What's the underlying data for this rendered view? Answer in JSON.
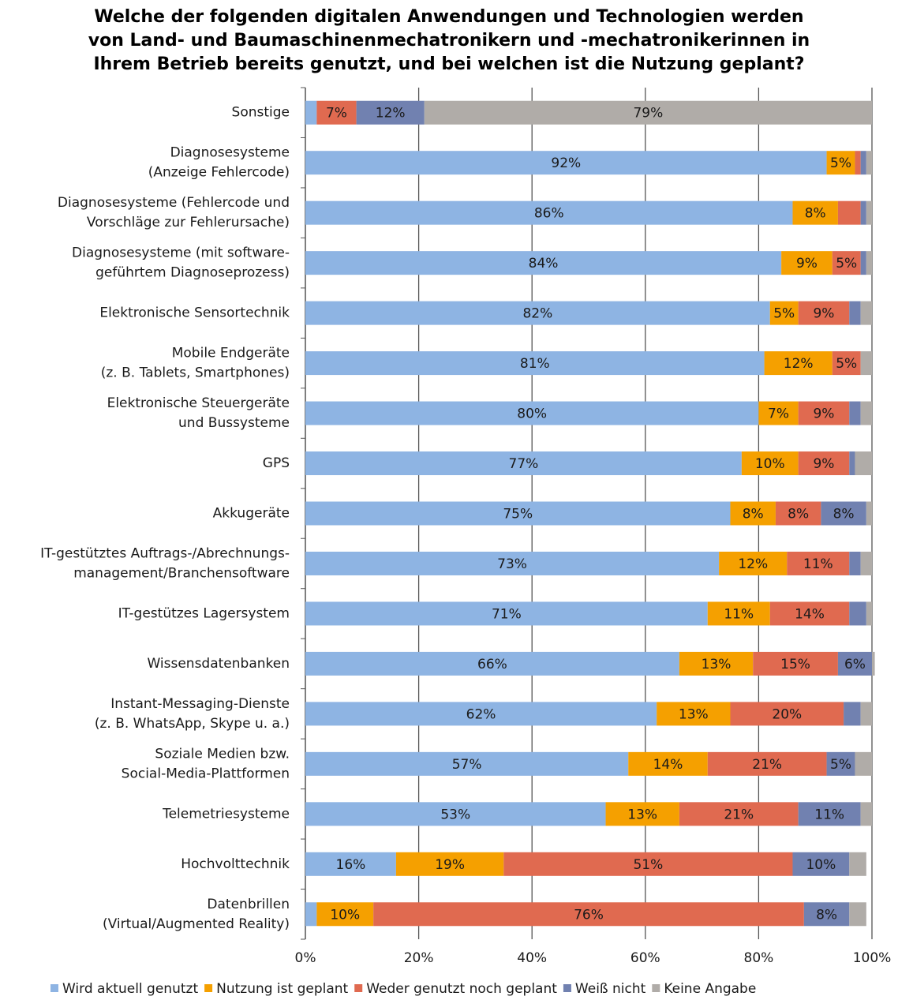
{
  "chart_data": {
    "type": "stacked-bar-horizontal",
    "title": [
      "Welche der folgenden digitalen Anwendungen und Technologien werden",
      "von Land- und Baumaschinenmechatronikern und -mechatronikerinnen  in",
      "Ihrem Betrieb bereits genutzt, und bei welchen ist die Nutzung geplant?"
    ],
    "categories": [
      [
        "Sonstige"
      ],
      [
        "Diagnosesysteme",
        "(Anzeige Fehlercode)"
      ],
      [
        "Diagnosesysteme (Fehlercode und",
        "Vorschläge zur Fehlerursache)"
      ],
      [
        "Diagnosesysteme (mit software-",
        "geführtem Diagnoseprozess)"
      ],
      [
        "Elektronische Sensortechnik"
      ],
      [
        "Mobile Endgeräte",
        "(z. B. Tablets, Smartphones)"
      ],
      [
        "Elektronische Steuergeräte",
        "und Bussysteme"
      ],
      [
        "GPS"
      ],
      [
        "Akkugeräte"
      ],
      [
        "IT-gestütztes Auftrags-/Abrechnungs-",
        "management/Branchensoftware"
      ],
      [
        "IT-gestützes Lagersystem"
      ],
      [
        "Wissensdatenbanken"
      ],
      [
        "Instant-Messaging-Dienste",
        "(z. B. WhatsApp, Skype u. a.)"
      ],
      [
        "Soziale Medien bzw.",
        "Social-Media-Plattformen"
      ],
      [
        "Telemetriesysteme"
      ],
      [
        "Hochvolttechnik"
      ],
      [
        "Datenbrillen",
        "(Virtual/Augmented Reality)"
      ]
    ],
    "series": [
      {
        "name": "Wird aktuell genutzt",
        "color": "#8eb4e3",
        "values": [
          2,
          92,
          86,
          84,
          82,
          81,
          80,
          77,
          75,
          73,
          71,
          66,
          62,
          57,
          53,
          16,
          2
        ],
        "value_labels": [
          null,
          "92%",
          "86%",
          "84%",
          "82%",
          "81%",
          "80%",
          "77%",
          "75%",
          "73%",
          "71%",
          "66%",
          "62%",
          "57%",
          "53%",
          "16%",
          null
        ]
      },
      {
        "name": "Nutzung ist geplant",
        "color": "#f5a000",
        "values": [
          0,
          5,
          8,
          9,
          5,
          12,
          7,
          10,
          8,
          12,
          11,
          13,
          13,
          14,
          13,
          19,
          10
        ],
        "value_labels": [
          null,
          "5%",
          "8%",
          "9%",
          "5%",
          "12%",
          "7%",
          "10%",
          "8%",
          "12%",
          "11%",
          "13%",
          "13%",
          "14%",
          "13%",
          "19%",
          "10%"
        ]
      },
      {
        "name": "Weder genutzt noch geplant",
        "color": "#e06a50",
        "values": [
          7,
          1,
          4,
          5,
          9,
          5,
          9,
          9,
          8,
          11,
          14,
          15,
          20,
          21,
          21,
          51,
          76
        ],
        "value_labels": [
          "7%",
          null,
          null,
          "5%",
          "9%",
          "5%",
          "9%",
          "9%",
          "8%",
          "11%",
          "14%",
          "15%",
          "20%",
          "21%",
          "21%",
          "51%",
          "76%"
        ]
      },
      {
        "name": "Weiß nicht",
        "color": "#7181b0",
        "values": [
          12,
          1,
          1,
          1,
          2,
          0,
          2,
          1,
          8,
          2,
          3,
          6,
          3,
          5,
          11,
          10,
          8
        ],
        "value_labels": [
          "12%",
          null,
          null,
          null,
          null,
          null,
          null,
          null,
          "8%",
          null,
          null,
          "6%",
          null,
          "5%",
          "11%",
          "10%",
          "8%"
        ]
      },
      {
        "name": "Keine Angabe",
        "color": "#b0aca8",
        "values": [
          79,
          1,
          1,
          1,
          2,
          2,
          2,
          3,
          1,
          2,
          1,
          0.5,
          2,
          3,
          2,
          3,
          3
        ],
        "value_labels": [
          "79%",
          null,
          null,
          null,
          null,
          null,
          null,
          null,
          null,
          null,
          null,
          null,
          null,
          null,
          null,
          null,
          null
        ]
      }
    ],
    "xlim": [
      0,
      100
    ],
    "xticks": [
      {
        "value": 0,
        "label": "0%"
      },
      {
        "value": 20,
        "label": "20%"
      },
      {
        "value": 40,
        "label": "40%"
      },
      {
        "value": 60,
        "label": "60%"
      },
      {
        "value": 80,
        "label": "80%"
      },
      {
        "value": 100,
        "label": "100%"
      }
    ],
    "grid": true,
    "legend": "bottom"
  }
}
